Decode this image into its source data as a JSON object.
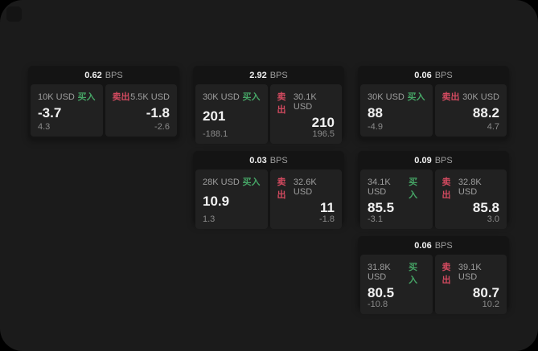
{
  "theme": {
    "page_bg": "#000000",
    "panel_bg": "#1b1b1b",
    "card_bg": "#141414",
    "tile_bg": "#212121",
    "value_color": "#f2f2f2",
    "label_color": "#9e9e9e",
    "muted_color": "#8a8a8a",
    "buy_color": "#46a566",
    "sell_color": "#d34a60"
  },
  "labels": {
    "bps_unit": "BPS",
    "buy": "买入",
    "sell": "卖出"
  },
  "cards": [
    {
      "bps": "0.62",
      "buy": {
        "size": "10K USD",
        "value": "-3.7",
        "delta": "4.3"
      },
      "sell": {
        "size": "5.5K USD",
        "value": "-1.8",
        "delta": "-2.6"
      }
    },
    {
      "bps": "2.92",
      "buy": {
        "size": "30K USD",
        "value": "201",
        "delta": "-188.1"
      },
      "sell": {
        "size": "30.1K USD",
        "value": "210",
        "delta": "196.5"
      }
    },
    {
      "bps": "0.06",
      "buy": {
        "size": "30K USD",
        "value": "88",
        "delta": "-4.9"
      },
      "sell": {
        "size": "30K USD",
        "value": "88.2",
        "delta": "4.7"
      }
    },
    {
      "bps": "0.03",
      "buy": {
        "size": "28K USD",
        "value": "10.9",
        "delta": "1.3"
      },
      "sell": {
        "size": "32.6K USD",
        "value": "11",
        "delta": "-1.8"
      }
    },
    {
      "bps": "0.09",
      "buy": {
        "size": "34.1K USD",
        "value": "85.5",
        "delta": "-3.1"
      },
      "sell": {
        "size": "32.8K USD",
        "value": "85.8",
        "delta": "3.0"
      }
    },
    {
      "bps": "0.06",
      "buy": {
        "size": "31.8K USD",
        "value": "80.5",
        "delta": "-10.8"
      },
      "sell": {
        "size": "39.1K USD",
        "value": "80.7",
        "delta": "10.2"
      }
    }
  ]
}
